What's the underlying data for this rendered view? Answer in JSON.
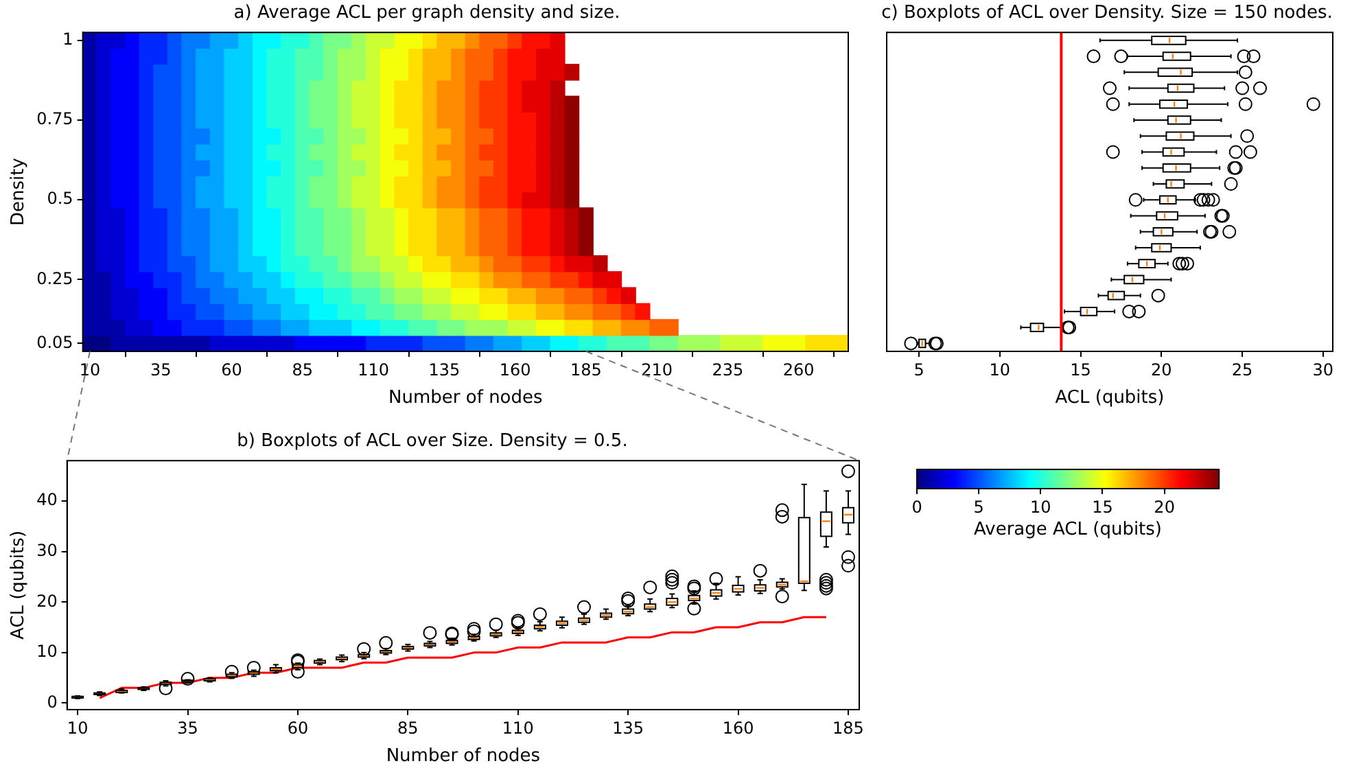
{
  "chart_data": [
    {
      "type": "heatmap",
      "title": "a) Average ACL per graph density and size.",
      "xlabel": "Number of nodes",
      "ylabel": "Density",
      "clabel": "Average ACL (qubits)",
      "clim": [
        0,
        24.4
      ],
      "cticks": [
        0,
        5,
        10,
        15,
        20
      ],
      "categories": [
        "10",
        null,
        null,
        null,
        null,
        "35",
        null,
        null,
        null,
        null,
        "60",
        null,
        null,
        null,
        null,
        "85",
        null,
        null,
        null,
        null,
        "110",
        null,
        null,
        null,
        null,
        "135",
        null,
        null,
        null,
        null,
        "160",
        null,
        null,
        null,
        null,
        "185",
        null,
        null,
        null,
        null,
        "210",
        null,
        null,
        null,
        null,
        "235",
        null,
        null,
        null,
        null,
        "260",
        null,
        null,
        null
      ],
      "y_categories": [
        "1",
        null,
        null,
        null,
        null,
        "0.75",
        null,
        null,
        null,
        null,
        "0.5",
        null,
        null,
        null,
        null,
        "0.25",
        null,
        null,
        null,
        "0.05"
      ],
      "cells": [
        [
          1,
          2,
          2,
          3,
          4,
          4,
          5,
          6,
          6,
          7,
          7,
          8,
          9,
          9,
          10,
          10,
          11,
          12,
          12,
          13,
          14,
          14,
          15,
          15,
          16,
          17,
          17,
          18,
          19,
          19,
          20,
          21,
          21,
          22,
          null,
          null,
          null,
          null,
          null,
          null,
          null,
          null,
          null,
          null,
          null,
          null,
          null,
          null,
          null,
          null,
          null,
          null,
          null,
          null
        ],
        [
          1,
          2,
          3,
          3,
          4,
          4,
          5,
          6,
          7,
          7,
          8,
          8,
          9,
          10,
          10,
          11,
          11,
          12,
          13,
          13,
          14,
          15,
          15,
          16,
          17,
          17,
          18,
          19,
          19,
          20,
          21,
          21,
          22,
          22,
          null,
          null,
          null,
          null,
          null,
          null,
          null,
          null,
          null,
          null,
          null,
          null,
          null,
          null,
          null,
          null,
          null,
          null,
          null,
          null
        ],
        [
          1,
          2,
          3,
          3,
          4,
          5,
          5,
          6,
          7,
          7,
          8,
          8,
          9,
          10,
          10,
          11,
          11,
          12,
          13,
          13,
          14,
          15,
          15,
          16,
          17,
          17,
          18,
          19,
          19,
          20,
          21,
          21,
          22,
          22,
          23,
          null,
          null,
          null,
          null,
          null,
          null,
          null,
          null,
          null,
          null,
          null,
          null,
          null,
          null,
          null,
          null,
          null,
          null,
          null
        ],
        [
          1,
          2,
          3,
          3,
          4,
          5,
          5,
          6,
          7,
          7,
          8,
          8,
          9,
          10,
          10,
          11,
          12,
          12,
          13,
          14,
          14,
          15,
          16,
          16,
          17,
          18,
          18,
          19,
          20,
          20,
          21,
          22,
          22,
          23,
          null,
          null,
          null,
          null,
          null,
          null,
          null,
          null,
          null,
          null,
          null,
          null,
          null,
          null,
          null,
          null,
          null,
          null,
          null,
          null
        ],
        [
          1,
          2,
          3,
          3,
          4,
          5,
          5,
          6,
          7,
          7,
          8,
          8,
          9,
          10,
          10,
          11,
          12,
          12,
          13,
          14,
          14,
          15,
          16,
          16,
          17,
          18,
          18,
          19,
          20,
          20,
          21,
          22,
          22,
          23,
          24,
          null,
          null,
          null,
          null,
          null,
          null,
          null,
          null,
          null,
          null,
          null,
          null,
          null,
          null,
          null,
          null,
          null,
          null,
          null
        ],
        [
          1,
          2,
          3,
          3,
          4,
          5,
          5,
          6,
          7,
          7,
          8,
          8,
          9,
          10,
          10,
          11,
          12,
          12,
          13,
          14,
          14,
          15,
          16,
          16,
          17,
          18,
          18,
          19,
          20,
          20,
          21,
          21,
          22,
          23,
          24,
          null,
          null,
          null,
          null,
          null,
          null,
          null,
          null,
          null,
          null,
          null,
          null,
          null,
          null,
          null,
          null,
          null,
          null,
          null
        ],
        [
          1,
          2,
          3,
          3,
          4,
          5,
          5,
          6,
          6,
          7,
          8,
          8,
          9,
          9,
          10,
          11,
          11,
          12,
          13,
          13,
          14,
          15,
          15,
          16,
          17,
          17,
          18,
          19,
          19,
          20,
          21,
          21,
          22,
          23,
          24,
          null,
          null,
          null,
          null,
          null,
          null,
          null,
          null,
          null,
          null,
          null,
          null,
          null,
          null,
          null,
          null,
          null,
          null,
          null
        ],
        [
          1,
          2,
          3,
          3,
          4,
          5,
          5,
          6,
          7,
          7,
          8,
          8,
          9,
          10,
          10,
          11,
          12,
          12,
          13,
          14,
          14,
          15,
          16,
          16,
          17,
          18,
          18,
          19,
          20,
          20,
          21,
          21,
          22,
          23,
          24,
          null,
          null,
          null,
          null,
          null,
          null,
          null,
          null,
          null,
          null,
          null,
          null,
          null,
          null,
          null,
          null,
          null,
          null,
          null
        ],
        [
          1,
          2,
          3,
          3,
          4,
          5,
          5,
          6,
          6,
          7,
          8,
          8,
          9,
          9,
          10,
          11,
          11,
          12,
          13,
          13,
          14,
          15,
          15,
          16,
          17,
          17,
          18,
          19,
          19,
          20,
          21,
          21,
          22,
          23,
          24,
          null,
          null,
          null,
          null,
          null,
          null,
          null,
          null,
          null,
          null,
          null,
          null,
          null,
          null,
          null,
          null,
          null,
          null,
          null
        ],
        [
          1,
          2,
          3,
          3,
          4,
          5,
          5,
          6,
          7,
          7,
          8,
          8,
          9,
          10,
          10,
          11,
          12,
          12,
          13,
          14,
          14,
          15,
          16,
          16,
          17,
          18,
          18,
          19,
          20,
          20,
          21,
          21,
          22,
          23,
          24,
          null,
          null,
          null,
          null,
          null,
          null,
          null,
          null,
          null,
          null,
          null,
          null,
          null,
          null,
          null,
          null,
          null,
          null,
          null
        ],
        [
          1,
          2,
          3,
          3,
          4,
          5,
          5,
          6,
          7,
          7,
          8,
          8,
          9,
          10,
          10,
          11,
          12,
          12,
          13,
          14,
          14,
          15,
          16,
          16,
          17,
          18,
          18,
          19,
          20,
          20,
          21,
          22,
          22,
          23,
          24,
          null,
          null,
          null,
          null,
          null,
          null,
          null,
          null,
          null,
          null,
          null,
          null,
          null,
          null,
          null,
          null,
          null,
          null,
          null
        ],
        [
          1,
          2,
          2,
          3,
          4,
          4,
          5,
          6,
          6,
          7,
          7,
          8,
          9,
          9,
          10,
          11,
          11,
          12,
          12,
          13,
          14,
          14,
          15,
          16,
          16,
          17,
          17,
          18,
          19,
          19,
          20,
          21,
          21,
          22,
          23,
          24,
          null,
          null,
          null,
          null,
          null,
          null,
          null,
          null,
          null,
          null,
          null,
          null,
          null,
          null,
          null,
          null,
          null,
          null
        ],
        [
          1,
          2,
          2,
          3,
          4,
          4,
          5,
          6,
          6,
          7,
          7,
          8,
          9,
          9,
          10,
          11,
          11,
          12,
          12,
          13,
          14,
          14,
          15,
          16,
          16,
          17,
          17,
          18,
          19,
          19,
          20,
          21,
          21,
          22,
          23,
          24,
          null,
          null,
          null,
          null,
          null,
          null,
          null,
          null,
          null,
          null,
          null,
          null,
          null,
          null,
          null,
          null,
          null,
          null
        ],
        [
          1,
          2,
          2,
          3,
          4,
          4,
          5,
          6,
          6,
          7,
          7,
          8,
          9,
          9,
          10,
          11,
          11,
          12,
          12,
          13,
          14,
          14,
          15,
          16,
          16,
          17,
          17,
          18,
          19,
          19,
          20,
          21,
          21,
          22,
          23,
          24,
          null,
          null,
          null,
          null,
          null,
          null,
          null,
          null,
          null,
          null,
          null,
          null,
          null,
          null,
          null,
          null,
          null,
          null
        ],
        [
          1,
          2,
          2,
          3,
          4,
          4,
          5,
          5,
          6,
          7,
          7,
          8,
          8,
          9,
          10,
          10,
          11,
          11,
          12,
          13,
          13,
          14,
          14,
          15,
          16,
          16,
          17,
          17,
          18,
          19,
          19,
          20,
          20,
          21,
          22,
          22,
          23,
          null,
          null,
          null,
          null,
          null,
          null,
          null,
          null,
          null,
          null,
          null,
          null,
          null,
          null,
          null,
          null,
          null
        ],
        [
          1,
          1,
          2,
          3,
          3,
          4,
          4,
          5,
          6,
          6,
          7,
          7,
          8,
          8,
          9,
          10,
          10,
          11,
          11,
          12,
          12,
          13,
          14,
          14,
          15,
          15,
          16,
          16,
          17,
          18,
          18,
          19,
          19,
          20,
          20,
          21,
          22,
          22,
          null,
          null,
          null,
          null,
          null,
          null,
          null,
          null,
          null,
          null,
          null,
          null,
          null,
          null,
          null,
          null
        ],
        [
          1,
          1,
          2,
          2,
          3,
          3,
          4,
          5,
          5,
          6,
          6,
          7,
          7,
          8,
          8,
          9,
          9,
          10,
          10,
          11,
          11,
          12,
          13,
          13,
          14,
          14,
          15,
          15,
          16,
          16,
          17,
          17,
          18,
          18,
          19,
          19,
          20,
          21,
          22,
          null,
          null,
          null,
          null,
          null,
          null,
          null,
          null,
          null,
          null,
          null,
          null,
          null,
          null,
          null
        ],
        [
          1,
          1,
          2,
          2,
          3,
          3,
          4,
          4,
          5,
          5,
          6,
          6,
          7,
          7,
          8,
          8,
          9,
          9,
          10,
          10,
          11,
          11,
          12,
          12,
          13,
          13,
          14,
          14,
          15,
          15,
          16,
          16,
          17,
          17,
          18,
          18,
          19,
          19,
          20,
          21,
          null,
          null,
          null,
          null,
          null,
          null,
          null,
          null,
          null,
          null,
          null,
          null,
          null,
          null
        ],
        [
          1,
          1,
          1,
          2,
          2,
          3,
          3,
          4,
          4,
          4,
          5,
          5,
          6,
          6,
          7,
          7,
          8,
          8,
          8,
          9,
          9,
          10,
          10,
          11,
          11,
          12,
          12,
          13,
          13,
          13,
          14,
          14,
          15,
          15,
          16,
          16,
          17,
          17,
          18,
          18,
          19,
          19,
          null,
          null,
          null,
          null,
          null,
          null,
          null,
          null,
          null,
          null,
          null,
          null
        ],
        [
          0,
          0,
          1,
          1,
          1,
          1,
          1,
          1,
          1,
          2,
          2,
          2,
          2,
          2,
          2,
          3,
          3,
          3,
          3,
          3,
          4,
          4,
          4,
          4,
          5,
          5,
          5,
          6,
          6,
          7,
          7,
          8,
          8,
          9,
          9,
          10,
          10,
          11,
          11,
          11,
          12,
          12,
          13,
          13,
          13,
          14,
          14,
          14,
          15,
          15,
          15,
          16,
          16,
          16
        ]
      ]
    },
    {
      "type": "box",
      "title": "b) Boxplots of ACL over Size. Density = 0.5.",
      "xlabel": "Number of nodes",
      "ylabel": "ACL (qubits)",
      "xlim": [
        7.6,
        187.5
      ],
      "xticks": [
        10,
        35,
        60,
        85,
        110,
        135,
        160,
        185
      ],
      "ylim": [
        -1.3,
        48
      ],
      "yticks": [
        0,
        10,
        20,
        30,
        40
      ],
      "x": [
        10,
        15,
        20,
        25,
        30,
        35,
        40,
        45,
        50,
        55,
        60,
        65,
        70,
        75,
        80,
        85,
        90,
        95,
        100,
        105,
        110,
        115,
        120,
        125,
        130,
        135,
        140,
        145,
        150,
        155,
        160,
        165,
        170,
        175,
        180,
        185
      ],
      "series": [
        {
          "type": "box",
          "color": "#000000",
          "boxes": [
            {
              "low": 0.9,
              "q1": 1.0,
              "median": 1.2,
              "q3": 1.3,
              "high": 1.4
            },
            {
              "low": 1.5,
              "q1": 1.7,
              "median": 1.8,
              "q3": 2.0,
              "high": 2.2
            },
            {
              "low": 2.0,
              "q1": 2.1,
              "median": 2.3,
              "q3": 2.5,
              "high": 2.8
            },
            {
              "low": 2.5,
              "q1": 2.7,
              "median": 2.8,
              "q3": 3.0,
              "high": 3.2
            },
            {
              "low": 3.4,
              "q1": 3.7,
              "median": 3.9,
              "q3": 4.1,
              "high": 4.4,
              "outliers": [
                2.9
              ]
            },
            {
              "low": 4.0,
              "q1": 4.2,
              "median": 4.4,
              "q3": 4.5,
              "high": 4.6,
              "outliers": [
                4.8
              ]
            },
            {
              "low": 4.2,
              "q1": 4.4,
              "median": 4.6,
              "q3": 4.8,
              "high": 5.0
            },
            {
              "low": 4.9,
              "q1": 5.2,
              "median": 5.4,
              "q3": 5.7,
              "high": 6.0,
              "outliers": [
                6.2
              ]
            },
            {
              "low": 5.3,
              "q1": 5.7,
              "median": 5.9,
              "q3": 6.2,
              "high": 6.5,
              "outliers": [
                7.0
              ]
            },
            {
              "low": 6.0,
              "q1": 6.4,
              "median": 6.7,
              "q3": 7.0,
              "high": 7.6
            },
            {
              "low": 6.6,
              "q1": 7.0,
              "median": 7.3,
              "q3": 7.7,
              "high": 7.9,
              "outliers": [
                6.2,
                8.2,
                8.5
              ]
            },
            {
              "low": 7.6,
              "q1": 7.9,
              "median": 8.1,
              "q3": 8.4,
              "high": 8.7
            },
            {
              "low": 8.2,
              "q1": 8.6,
              "median": 8.8,
              "q3": 9.1,
              "high": 9.5
            },
            {
              "low": 8.8,
              "q1": 9.1,
              "median": 9.3,
              "q3": 9.6,
              "high": 10.0,
              "outliers": [
                10.7
              ]
            },
            {
              "low": 9.6,
              "q1": 9.9,
              "median": 10.1,
              "q3": 10.4,
              "high": 10.8,
              "outliers": [
                11.9
              ]
            },
            {
              "low": 10.3,
              "q1": 10.7,
              "median": 10.9,
              "q3": 11.2,
              "high": 11.6
            },
            {
              "low": 11.0,
              "q1": 11.3,
              "median": 11.6,
              "q3": 11.8,
              "high": 12.2,
              "outliers": [
                13.9
              ]
            },
            {
              "low": 11.5,
              "q1": 11.8,
              "median": 12.1,
              "q3": 12.4,
              "high": 12.8,
              "outliers": [
                13.6,
                13.8
              ]
            },
            {
              "low": 12.3,
              "q1": 12.6,
              "median": 12.9,
              "q3": 13.2,
              "high": 13.6,
              "outliers": [
                14.2,
                14.7
              ]
            },
            {
              "low": 13.0,
              "q1": 13.3,
              "median": 13.6,
              "q3": 13.9,
              "high": 14.4,
              "outliers": [
                15.6
              ]
            },
            {
              "low": 13.4,
              "q1": 13.8,
              "median": 14.1,
              "q3": 14.4,
              "high": 14.9,
              "outliers": [
                15.9,
                16.3
              ]
            },
            {
              "low": 14.3,
              "q1": 14.7,
              "median": 15.1,
              "q3": 15.4,
              "high": 16.1,
              "outliers": [
                17.6
              ]
            },
            {
              "low": 14.9,
              "q1": 15.4,
              "median": 15.8,
              "q3": 16.2,
              "high": 17.0
            },
            {
              "low": 15.6,
              "q1": 16.0,
              "median": 16.4,
              "q3": 16.8,
              "high": 17.6,
              "outliers": [
                19.0
              ]
            },
            {
              "low": 16.6,
              "q1": 17.0,
              "median": 17.4,
              "q3": 17.8,
              "high": 18.6
            },
            {
              "low": 17.3,
              "q1": 17.7,
              "median": 18.1,
              "q3": 18.6,
              "high": 19.3,
              "outliers": [
                20.2,
                20.7
              ]
            },
            {
              "low": 18.1,
              "q1": 18.6,
              "median": 19.0,
              "q3": 19.6,
              "high": 20.6,
              "outliers": [
                22.9
              ]
            },
            {
              "low": 18.9,
              "q1": 19.4,
              "median": 20.0,
              "q3": 20.7,
              "high": 21.6,
              "outliers": [
                23.8,
                24.4,
                25.1
              ]
            },
            {
              "low": 19.6,
              "q1": 20.3,
              "median": 20.7,
              "q3": 21.3,
              "high": 22.2,
              "outliers": [
                18.7,
                22.7,
                23.1
              ]
            },
            {
              "low": 20.6,
              "q1": 21.2,
              "median": 21.8,
              "q3": 22.4,
              "high": 23.7,
              "outliers": [
                24.6
              ]
            },
            {
              "low": 21.4,
              "q1": 22.0,
              "median": 22.6,
              "q3": 23.3,
              "high": 25.0
            },
            {
              "low": 21.7,
              "q1": 22.2,
              "median": 22.8,
              "q3": 23.4,
              "high": 24.4,
              "outliers": [
                26.2
              ]
            },
            {
              "low": 22.6,
              "q1": 23.0,
              "median": 23.4,
              "q3": 23.9,
              "high": 24.6,
              "outliers": [
                21.1,
                36.9,
                38.2
              ]
            },
            {
              "low": 22.3,
              "q1": 23.7,
              "median": 24.1,
              "q3": 36.7,
              "high": 43.3
            },
            {
              "low": 30.9,
              "q1": 33.0,
              "median": 36.0,
              "q3": 37.8,
              "high": 42.0,
              "outliers": [
                22.7,
                23.2,
                23.8,
                24.4
              ]
            },
            {
              "low": 33.4,
              "q1": 35.7,
              "median": 37.3,
              "q3": 38.7,
              "high": 42.0,
              "outliers": [
                27.2,
                28.9,
                45.9
              ]
            }
          ]
        },
        {
          "type": "line",
          "color": "#ff0000",
          "x": [
            15,
            20,
            25,
            30,
            35,
            40,
            45,
            50,
            55,
            60,
            65,
            70,
            75,
            80,
            85,
            90,
            95,
            100,
            105,
            110,
            115,
            120,
            125,
            130,
            135,
            140,
            145,
            150,
            155,
            160,
            165,
            170,
            175,
            180
          ],
          "values": [
            1,
            3,
            3,
            4,
            4,
            5,
            5,
            6,
            6,
            7,
            7,
            7,
            8,
            8,
            9,
            9,
            9,
            10,
            10,
            11,
            11,
            12,
            12,
            12,
            13,
            13,
            14,
            14,
            15,
            15,
            16,
            16,
            17,
            17
          ]
        }
      ]
    },
    {
      "type": "box",
      "orientation": "horizontal",
      "title": "c) Boxplots of ACL over Density. Size = 150 nodes.",
      "xlabel": "ACL (qubits)",
      "xlim": [
        3,
        30.6
      ],
      "xticks": [
        5,
        10,
        15,
        20,
        25,
        30
      ],
      "tick_labels": "x",
      "categories": [
        null,
        null,
        null,
        null,
        null,
        null,
        null,
        null,
        null,
        null,
        null,
        null,
        null,
        null,
        null,
        null,
        null,
        null,
        null,
        null
      ],
      "ref_lines": [
        {
          "axis": "x",
          "value": 13.8,
          "color": "#ff0000"
        }
      ],
      "series": [
        {
          "type": "box",
          "color": "#000000",
          "boxes": [
            {
              "low": 16.2,
              "q1": 19.4,
              "median": 20.5,
              "q3": 21.5,
              "high": 24.7
            },
            {
              "low": 17.9,
              "q1": 20.1,
              "median": 20.7,
              "q3": 21.8,
              "high": 24.3,
              "outliers": [
                15.8,
                17.5,
                25.1,
                25.7
              ]
            },
            {
              "low": 17.7,
              "q1": 19.8,
              "median": 21.2,
              "q3": 21.9,
              "high": 24.7,
              "outliers": [
                25.2
              ]
            },
            {
              "low": 18.0,
              "q1": 20.4,
              "median": 21.0,
              "q3": 22.0,
              "high": 23.9,
              "outliers": [
                16.8,
                25.0,
                26.1
              ]
            },
            {
              "low": 18.0,
              "q1": 19.9,
              "median": 20.8,
              "q3": 21.6,
              "high": 24.1,
              "outliers": [
                17.0,
                25.2,
                29.4
              ]
            },
            {
              "low": 18.3,
              "q1": 20.4,
              "median": 20.9,
              "q3": 21.8,
              "high": 23.7
            },
            {
              "low": 18.7,
              "q1": 20.3,
              "median": 21.2,
              "q3": 22.0,
              "high": 24.3,
              "outliers": [
                25.3
              ]
            },
            {
              "low": 18.8,
              "q1": 20.1,
              "median": 20.6,
              "q3": 21.4,
              "high": 23.4,
              "outliers": [
                17.0,
                24.6,
                25.5
              ]
            },
            {
              "low": 18.8,
              "q1": 20.1,
              "median": 20.9,
              "q3": 21.8,
              "high": 23.6,
              "outliers": [
                24.5,
                24.6
              ]
            },
            {
              "low": 19.5,
              "q1": 20.3,
              "median": 20.6,
              "q3": 21.4,
              "high": 23.1,
              "outliers": [
                24.3
              ]
            },
            {
              "low": 18.9,
              "q1": 19.9,
              "median": 20.4,
              "q3": 20.9,
              "high": 22.1,
              "outliers": [
                18.4,
                22.4,
                22.6,
                22.9,
                23.2
              ]
            },
            {
              "low": 18.1,
              "q1": 19.7,
              "median": 20.2,
              "q3": 21.0,
              "high": 22.7,
              "outliers": [
                23.7,
                23.8
              ]
            },
            {
              "low": 18.7,
              "q1": 19.5,
              "median": 20.0,
              "q3": 20.7,
              "high": 22.2,
              "outliers": [
                23.0,
                23.1,
                24.2
              ]
            },
            {
              "low": 18.4,
              "q1": 19.4,
              "median": 19.9,
              "q3": 20.6,
              "high": 22.4
            },
            {
              "low": 17.9,
              "q1": 18.6,
              "median": 19.1,
              "q3": 19.6,
              "high": 20.4,
              "outliers": [
                21.1,
                21.3,
                21.6
              ]
            },
            {
              "low": 16.9,
              "q1": 17.7,
              "median": 18.2,
              "q3": 18.9,
              "high": 20.6
            },
            {
              "low": 16.1,
              "q1": 16.7,
              "median": 17.0,
              "q3": 17.7,
              "high": 18.7,
              "outliers": [
                19.8
              ]
            },
            {
              "low": 14.0,
              "q1": 15.0,
              "median": 15.4,
              "q3": 16.0,
              "high": 17.1,
              "outliers": [
                18.0,
                18.6
              ]
            },
            {
              "low": 11.3,
              "q1": 11.9,
              "median": 12.4,
              "q3": 12.7,
              "high": 13.9,
              "outliers": [
                14.2,
                14.3
              ]
            },
            {
              "low": 4.9,
              "q1": 5.0,
              "median": 5.2,
              "q3": 5.4,
              "high": 5.7,
              "outliers": [
                4.5,
                6.0,
                6.1
              ]
            }
          ]
        }
      ]
    }
  ]
}
